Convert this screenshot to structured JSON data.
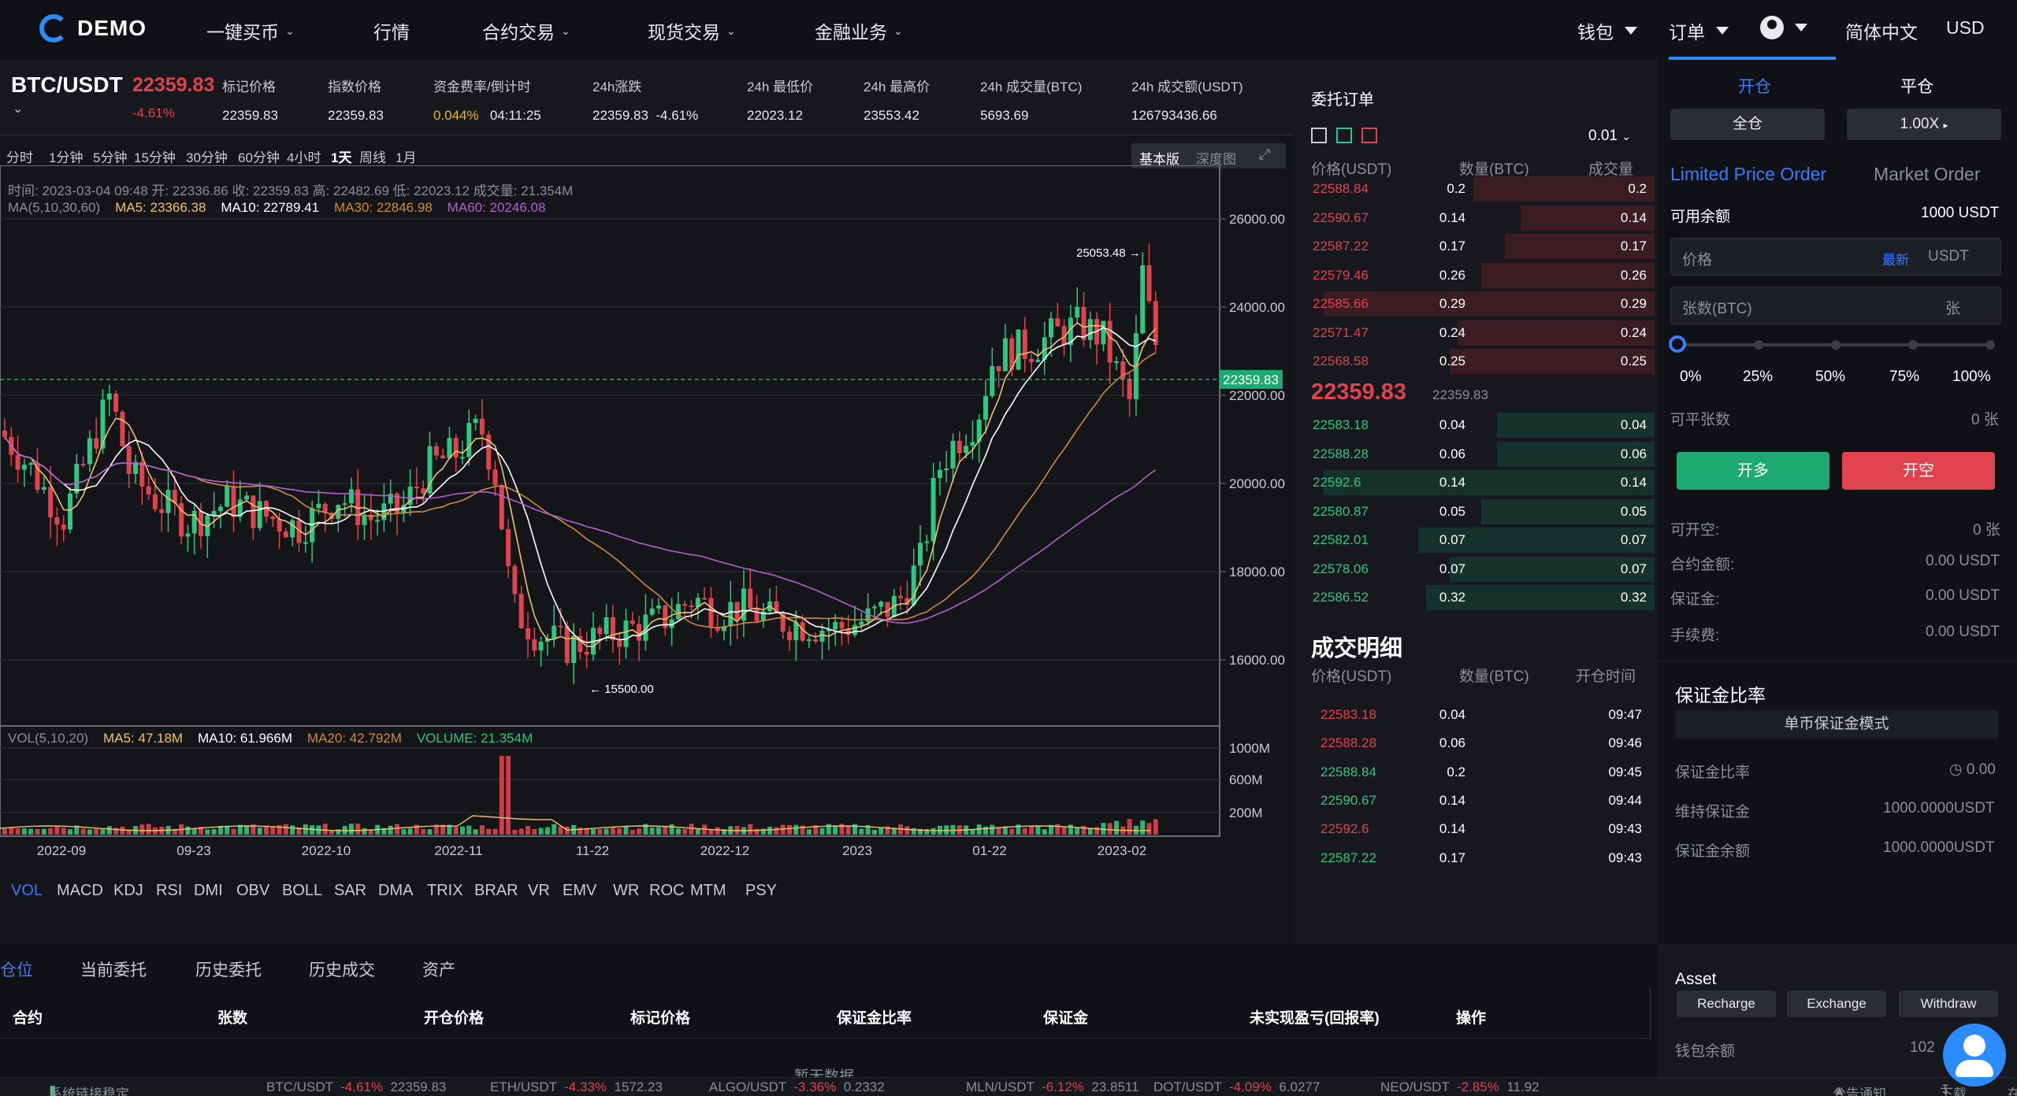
{
  "header": {
    "logo_text": "DEMO",
    "nav": [
      "一键买币",
      "行情",
      "合约交易",
      "现货交易",
      "金融业务"
    ],
    "wallet": "钱包",
    "orders": "订单",
    "language": "简体中文",
    "currency": "USD"
  },
  "ticker": {
    "pair": "BTC/USDT",
    "price": "22359.83",
    "change": "-4.61%",
    "mark_price_label": "标记价格",
    "mark_price": "22359.83",
    "index_price_label": "指数价格",
    "index_price": "22359.83",
    "funding_label": "资金费率/倒计时",
    "funding_rate": "0.044%",
    "funding_countdown": "04:11:25",
    "change_24h_label": "24h涨跌",
    "change_24h_price": "22359.83",
    "change_24h_pct": "-4.61%",
    "low_label": "24h 最低价",
    "low": "22023.12",
    "high_label": "24h 最高价",
    "high": "23553.42",
    "vol_btc_label": "24h 成交量(BTC)",
    "vol_btc": "5693.69",
    "vol_usdt_label": "24h 成交额(USDT)",
    "vol_usdt": "126793436.66"
  },
  "chart_toolbar": {
    "intervals": [
      "分时",
      "1分钟",
      "5分钟",
      "15分钟",
      "30分钟",
      "60分钟",
      "4小时",
      "1天",
      "周线",
      "1月"
    ],
    "active_interval": "1天",
    "views": [
      "基本版",
      "深度图"
    ]
  },
  "chart_info": {
    "line1": "时间: 2023-03-04 09:48    开: 22336.86    收: 22359.83    高: 22482.69    低: 22023.12    成交量: 21.354M",
    "ma_label": "MA(5,10,30,60)",
    "ma5": "MA5: 23366.38",
    "ma10": "MA10: 22789.41",
    "ma30": "MA30: 22846.98",
    "ma60": "MA60: 20246.08",
    "vol_label": "VOL(5,10,20)",
    "vol_ma5": "MA5: 47.18M",
    "vol_ma10": "MA10: 61.966M",
    "vol_ma20": "MA20: 42.792M",
    "vol_volume": "VOLUME: 21.354M",
    "high_mark": "25053.48",
    "low_mark": "15500.00",
    "last_price_tag": "22359.83"
  },
  "chart_data": {
    "type": "candlestick",
    "y_ticks": [
      "26000.00",
      "24000.00",
      "22000.00",
      "20000.00",
      "18000.00",
      "16000.00"
    ],
    "vol_ticks": [
      "1000M",
      "600M",
      "200M"
    ],
    "x_ticks": [
      "2022-09",
      "09-23",
      "2022-10",
      "2022-11",
      "11-22",
      "2022-12",
      "2023",
      "01-22",
      "2023-02"
    ],
    "ylim": [
      14400,
      27000
    ],
    "colors": {
      "up": "#2ec680",
      "down": "#e0434e",
      "ma5": "#ffffff",
      "ma10": "#f0c36b",
      "ma30": "#d08a3c",
      "ma60": "#b45fd0"
    }
  },
  "indicators": [
    "VOL",
    "MACD",
    "KDJ",
    "RSI",
    "DMI",
    "OBV",
    "BOLL",
    "SAR",
    "DMA",
    "TRIX",
    "BRAR",
    "VR",
    "EMV",
    "WR",
    "ROC",
    "MTM",
    "PSY"
  ],
  "orderbook": {
    "title": "委托订单",
    "precision": "0.01",
    "headers": [
      "价格(USDT)",
      "数量(BTC)",
      "成交量"
    ],
    "asks": [
      [
        "22588.84",
        "0.2",
        "0.2"
      ],
      [
        "22590.67",
        "0.14",
        "0.14"
      ],
      [
        "22587.22",
        "0.17",
        "0.17"
      ],
      [
        "22579.46",
        "0.26",
        "0.26"
      ],
      [
        "22585.66",
        "0.29",
        "0.29"
      ],
      [
        "22571.47",
        "0.24",
        "0.24"
      ],
      [
        "22568.58",
        "0.25",
        "0.25"
      ]
    ],
    "last_price": "22359.83",
    "last_price_small": "22359.83",
    "bids": [
      [
        "22583.18",
        "0.04",
        "0.04"
      ],
      [
        "22588.28",
        "0.06",
        "0.06"
      ],
      [
        "22592.6",
        "0.14",
        "0.14"
      ],
      [
        "22580.87",
        "0.05",
        "0.05"
      ],
      [
        "22582.01",
        "0.07",
        "0.07"
      ],
      [
        "22578.06",
        "0.07",
        "0.07"
      ],
      [
        "22586.52",
        "0.32",
        "0.32"
      ]
    ]
  },
  "trades": {
    "title": "成交明细",
    "headers": [
      "价格(USDT)",
      "数量(BTC)",
      "开仓时间"
    ],
    "rows": [
      [
        "22583.18",
        "0.04",
        "09:47",
        "red"
      ],
      [
        "22588.28",
        "0.06",
        "09:46",
        "red"
      ],
      [
        "22588.84",
        "0.2",
        "09:45",
        "green"
      ],
      [
        "22590.67",
        "0.14",
        "09:44",
        "green"
      ],
      [
        "22592.6",
        "0.14",
        "09:43",
        "red"
      ],
      [
        "22587.22",
        "0.17",
        "09:43",
        "green"
      ]
    ]
  },
  "trade_panel": {
    "tab_open": "开仓",
    "tab_close": "平仓",
    "margin_mode": "全仓",
    "leverage": "1.00X",
    "limit_order": "Limited Price Order",
    "market_order": "Market Order",
    "available_label": "可用余额",
    "available": "1000 USDT",
    "price_placeholder": "价格",
    "price_latest": "最新",
    "price_unit": "USDT",
    "qty_placeholder": "张数(BTC)",
    "qty_unit": "张",
    "pcts": [
      "0%",
      "25%",
      "50%",
      "75%",
      "100%"
    ],
    "closable_label": "可平张数",
    "closable": "0 张",
    "btn_long": "开多",
    "btn_short": "开空",
    "openable_label": "可开空:",
    "openable": "0 张",
    "contract_amount_label": "合约金额:",
    "contract_amount": "0.00 USDT",
    "margin_label": "保证金:",
    "margin": "0.00 USDT",
    "fee_label": "手续费:",
    "fee": "0.00 USDT",
    "ratio_title": "保证金比率",
    "single_mode": "单币保证金模式",
    "ratio_label": "保证金比率",
    "ratio": "0.00",
    "maint_label": "维持保证金",
    "maint": "1000.0000USDT",
    "balance_label": "保证金余额",
    "balance": "1000.0000USDT"
  },
  "positions": {
    "tabs": [
      "仓位",
      "当前委托",
      "历史委托",
      "历史成交",
      "资产"
    ],
    "headers": [
      "合约",
      "张数",
      "开仓价格",
      "标记价格",
      "保证金比率",
      "保证金",
      "未实现盈亏(回报率)",
      "操作"
    ],
    "empty": "暂无数据"
  },
  "asset": {
    "title": "Asset",
    "recharge": "Recharge",
    "exchange": "Exchange",
    "withdraw": "Withdraw",
    "wallet_balance_label": "钱包余额",
    "wallet_balance": "102"
  },
  "status": {
    "connection": "系统链接稳定",
    "items": [
      [
        "BTC/USDT",
        "-4.61%",
        "22359.83"
      ],
      [
        "ETH/USDT",
        "-4.33%",
        "1572.23"
      ],
      [
        "ALGO/USDT",
        "-3.36%",
        "0.2332"
      ],
      [
        "MLN/USDT",
        "-6.12%",
        "23.8511"
      ],
      [
        "DOT/USDT",
        "-4.09%",
        "6.0277"
      ],
      [
        "NEO/USDT",
        "-2.85%",
        "11.92"
      ]
    ],
    "notice": "公告通知",
    "download": "下载",
    "support": "在线客服"
  }
}
